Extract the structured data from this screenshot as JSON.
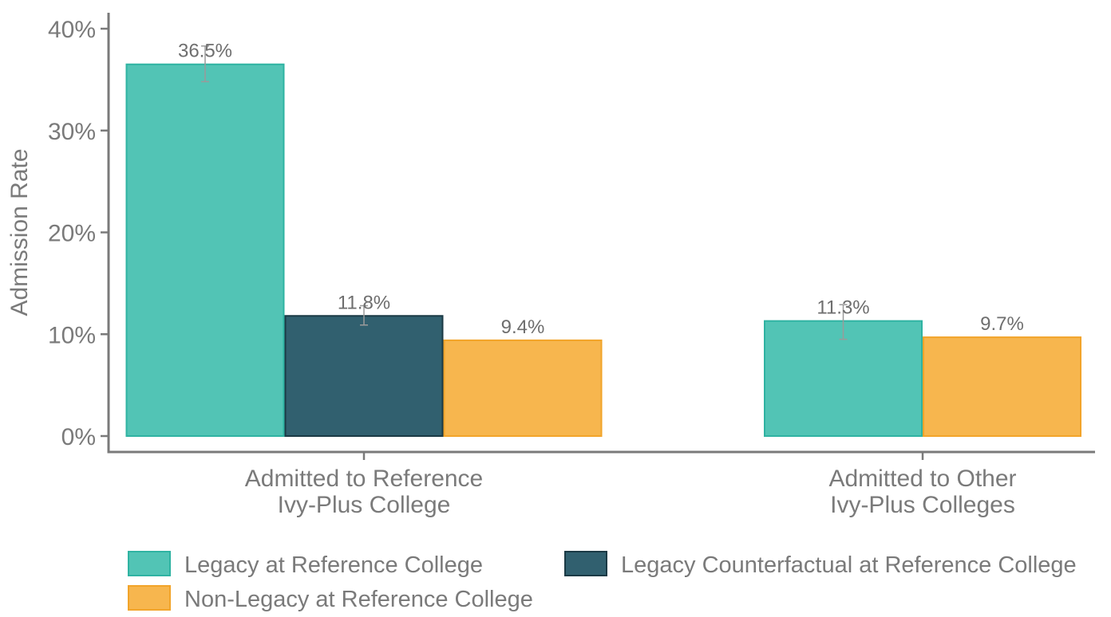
{
  "chart_data": {
    "type": "bar",
    "ylabel": "Admission Rate",
    "ylim": [
      0,
      40
    ],
    "yticks": [
      {
        "value": 0,
        "label": "0%"
      },
      {
        "value": 10,
        "label": "10%"
      },
      {
        "value": 20,
        "label": "20%"
      },
      {
        "value": 30,
        "label": "30%"
      },
      {
        "value": 40,
        "label": "40%"
      }
    ],
    "categories": [
      {
        "lines": [
          "Admitted to Reference",
          "Ivy-Plus College"
        ]
      },
      {
        "lines": [
          "Admitted to Other",
          "Ivy-Plus Colleges"
        ]
      }
    ],
    "series": [
      {
        "name": "Legacy at Reference College",
        "fill": "#52C4B5",
        "stroke": "#2FB3A2",
        "values": [
          36.5,
          11.3
        ],
        "labels": [
          "36.5%",
          "11.3%"
        ],
        "error_low": [
          34.8,
          9.5
        ],
        "error_high": [
          38.3,
          12.9
        ]
      },
      {
        "name": "Legacy Counterfactual at Reference College",
        "fill": "#31606F",
        "stroke": "#1B3A45",
        "values": [
          11.8,
          null
        ],
        "labels": [
          "11.8%",
          ""
        ],
        "error_low": [
          10.9,
          null
        ],
        "error_high": [
          12.8,
          null
        ]
      },
      {
        "name": "Non-Legacy at Reference College",
        "fill": "#F7B64E",
        "stroke": "#F2A42A",
        "values": [
          9.4,
          9.7
        ],
        "labels": [
          "9.4%",
          "9.7%"
        ],
        "error_low": [
          null,
          null
        ],
        "error_high": [
          null,
          null
        ]
      }
    ],
    "legend_position": "bottom",
    "grid": false
  }
}
